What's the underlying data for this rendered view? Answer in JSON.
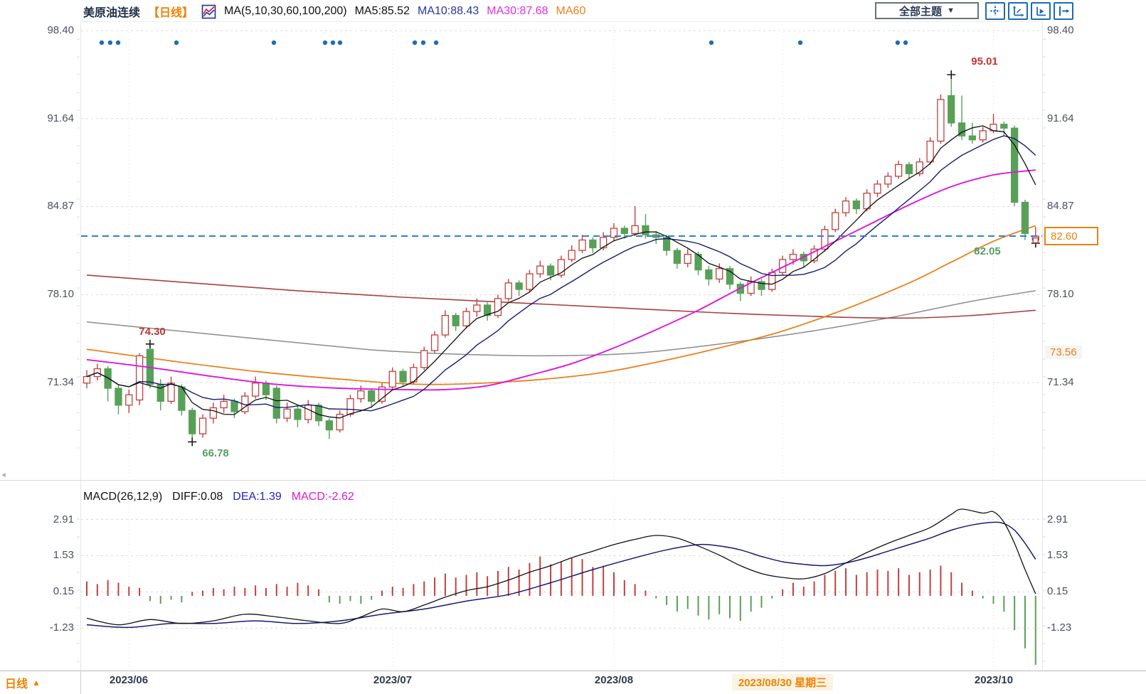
{
  "header": {
    "title": "美原油连续",
    "period_tag": "【日线】",
    "ma_settings": "MA(5,10,30,60,100,200)",
    "ma5": "MA5:85.52",
    "ma10": "MA10:88.43",
    "ma30": "MA30:87.68",
    "ma60": "MA60",
    "theme_dropdown": "全部主题",
    "dropdown_arrow": "▼"
  },
  "icons": {
    "toolbar": [
      "move-cross",
      "axis-fit",
      "axis-play",
      "pan-right"
    ],
    "indicator_icon": "mini-line-chart",
    "period_up_arrow": "▲"
  },
  "colors": {
    "up": "#c0413f",
    "down": "#58a058",
    "ma5": "#111111",
    "ma10": "#191975",
    "ma30": "#dd16dd",
    "ma60": "#e8821e",
    "ma100": "#8c8c8c",
    "ma200": "#a84040",
    "last_price_line": "#2f7ed8",
    "event_dot": "#1f6cb4",
    "accent_orange": "#ef8200",
    "annotation_high": "#c13531",
    "annotation_low": "#55a060"
  },
  "price_axis": {
    "left": [
      "98.40",
      "91.64",
      "84.87",
      "78.10",
      "71.34"
    ],
    "right": [
      "98.40",
      "91.64",
      "84.87",
      "78.10",
      "71.34"
    ],
    "last_price_label": "82.60",
    "extra_right_label": "73.56"
  },
  "macd_axis": {
    "left": [
      "2.91",
      "1.53",
      "0.15",
      "-1.23"
    ],
    "right": [
      "2.91",
      "1.53",
      "0.15",
      "-1.23"
    ]
  },
  "macd_header": {
    "formula": "MACD(26,12,9)",
    "diff": "DIFF:0.08",
    "dea": "DEA:1.39",
    "macd": "MACD:-2.62"
  },
  "annotations": {
    "high1": "74.30",
    "low1": "66.78",
    "high2": "95.01",
    "low2": "82.05"
  },
  "bottom_axis": {
    "period": "日线",
    "arrow": "▲",
    "date1": "2023/06",
    "date2": "2023/07",
    "date3": "2023/08",
    "selected_date": "2023/08/30 星期三",
    "date5": "2023/10"
  },
  "chart_data": {
    "type": "candlestick+macd",
    "symbol": "美原油连续",
    "period": "日线",
    "price_axis_ticks": [
      98.4,
      91.64,
      84.87,
      78.1,
      71.34
    ],
    "macd_axis_ticks": [
      2.91,
      1.53,
      0.15,
      -1.23
    ],
    "last_price": 82.6,
    "extra_axis_value": 73.56,
    "ma_values": {
      "ma5": 85.52,
      "ma10": 88.43,
      "ma30": 87.68
    },
    "candles": [
      [
        71.3,
        72.3,
        70.9,
        71.8
      ],
      [
        71.8,
        72.8,
        71.5,
        72.4
      ],
      [
        72.4,
        72.6,
        69.9,
        70.9
      ],
      [
        70.9,
        71.2,
        68.9,
        69.6
      ],
      [
        69.6,
        70.8,
        69.0,
        70.4
      ],
      [
        70.0,
        73.6,
        69.6,
        73.4
      ],
      [
        73.9,
        74.3,
        70.9,
        71.2
      ],
      [
        71.2,
        71.6,
        69.2,
        69.9
      ],
      [
        69.9,
        71.8,
        69.7,
        71.3
      ],
      [
        71.0,
        71.2,
        68.8,
        69.2
      ],
      [
        69.2,
        69.4,
        66.78,
        67.4
      ],
      [
        67.4,
        68.9,
        67.1,
        68.6
      ],
      [
        68.6,
        69.8,
        68.2,
        69.4
      ],
      [
        69.4,
        70.4,
        69.0,
        69.9
      ],
      [
        69.9,
        70.1,
        68.6,
        69.1
      ],
      [
        69.1,
        70.6,
        68.9,
        70.3
      ],
      [
        70.3,
        71.8,
        70.1,
        71.3
      ],
      [
        71.3,
        71.5,
        70.0,
        70.4
      ],
      [
        70.9,
        71.1,
        68.2,
        68.6
      ],
      [
        68.6,
        69.8,
        68.3,
        69.3
      ],
      [
        69.3,
        69.5,
        67.9,
        68.5
      ],
      [
        68.5,
        70.0,
        68.2,
        69.6
      ],
      [
        69.6,
        69.8,
        68.0,
        68.4
      ],
      [
        68.4,
        68.6,
        67.0,
        67.7
      ],
      [
        67.7,
        69.2,
        67.5,
        68.9
      ],
      [
        68.9,
        70.4,
        68.7,
        70.1
      ],
      [
        70.1,
        71.1,
        69.8,
        70.7
      ],
      [
        70.7,
        70.9,
        69.4,
        69.9
      ],
      [
        69.9,
        71.3,
        69.7,
        71.0
      ],
      [
        71.0,
        72.5,
        70.8,
        72.2
      ],
      [
        72.2,
        72.4,
        71.0,
        71.4
      ],
      [
        71.4,
        72.8,
        71.2,
        72.5
      ],
      [
        72.5,
        74.1,
        72.3,
        73.8
      ],
      [
        73.8,
        75.3,
        73.6,
        75.0
      ],
      [
        75.0,
        76.9,
        74.8,
        76.5
      ],
      [
        76.5,
        76.7,
        75.3,
        75.7
      ],
      [
        75.7,
        77.1,
        75.5,
        76.8
      ],
      [
        76.8,
        77.8,
        76.4,
        77.3
      ],
      [
        77.3,
        77.5,
        76.1,
        76.5
      ],
      [
        76.5,
        78.1,
        76.3,
        77.8
      ],
      [
        77.8,
        79.3,
        77.6,
        79.0
      ],
      [
        79.0,
        79.2,
        78.0,
        78.5
      ],
      [
        78.5,
        80.0,
        78.3,
        79.7
      ],
      [
        79.7,
        80.7,
        79.4,
        80.3
      ],
      [
        80.3,
        80.5,
        79.2,
        79.6
      ],
      [
        79.6,
        81.1,
        79.4,
        80.8
      ],
      [
        80.8,
        81.9,
        80.6,
        81.5
      ],
      [
        81.5,
        82.7,
        81.3,
        82.3
      ],
      [
        82.3,
        82.5,
        81.3,
        81.7
      ],
      [
        81.7,
        82.9,
        81.5,
        82.5
      ],
      [
        82.5,
        83.6,
        82.2,
        83.2
      ],
      [
        83.2,
        83.4,
        82.4,
        82.8
      ],
      [
        82.8,
        84.9,
        82.6,
        83.4
      ],
      [
        83.4,
        84.3,
        82.4,
        82.7
      ],
      [
        82.7,
        83.0,
        82.0,
        82.5
      ],
      [
        82.5,
        82.7,
        81.1,
        81.5
      ],
      [
        81.5,
        81.7,
        80.1,
        80.5
      ],
      [
        80.5,
        81.6,
        80.2,
        81.2
      ],
      [
        81.2,
        81.4,
        79.6,
        80.0
      ],
      [
        80.0,
        80.3,
        78.8,
        79.3
      ],
      [
        79.3,
        80.5,
        79.0,
        80.1
      ],
      [
        80.1,
        80.3,
        78.5,
        78.9
      ],
      [
        78.9,
        79.1,
        77.6,
        78.2
      ],
      [
        78.2,
        79.5,
        78.0,
        79.1
      ],
      [
        79.1,
        79.3,
        78.0,
        78.5
      ],
      [
        78.5,
        80.1,
        78.3,
        79.8
      ],
      [
        79.8,
        81.1,
        79.6,
        80.8
      ],
      [
        80.8,
        81.6,
        80.4,
        81.2
      ],
      [
        81.2,
        81.4,
        80.2,
        80.7
      ],
      [
        80.7,
        81.9,
        80.5,
        81.6
      ],
      [
        81.6,
        83.4,
        81.4,
        83.1
      ],
      [
        83.1,
        84.7,
        82.9,
        84.4
      ],
      [
        84.4,
        85.6,
        84.1,
        85.3
      ],
      [
        85.3,
        85.5,
        84.3,
        84.7
      ],
      [
        84.7,
        86.2,
        84.5,
        85.9
      ],
      [
        85.9,
        86.9,
        85.6,
        86.6
      ],
      [
        86.6,
        87.5,
        86.3,
        87.2
      ],
      [
        87.2,
        88.4,
        87.0,
        88.1
      ],
      [
        88.1,
        88.3,
        87.0,
        87.4
      ],
      [
        87.4,
        88.6,
        87.2,
        88.3
      ],
      [
        88.3,
        90.2,
        88.1,
        89.9
      ],
      [
        89.9,
        93.5,
        89.7,
        93.1
      ],
      [
        93.4,
        95.01,
        91.0,
        91.3
      ],
      [
        91.3,
        93.4,
        90.0,
        90.3
      ],
      [
        90.3,
        91.3,
        89.7,
        90.0
      ],
      [
        90.0,
        91.0,
        89.8,
        90.7
      ],
      [
        90.7,
        92.0,
        90.5,
        91.2
      ],
      [
        91.2,
        91.4,
        90.3,
        90.9
      ],
      [
        90.9,
        91.1,
        84.9,
        85.2
      ],
      [
        85.2,
        85.4,
        82.3,
        82.8
      ],
      [
        82.3,
        83.3,
        82.05,
        82.6
      ]
    ],
    "ma_lines": {
      "ma30": [
        [
          0,
          73.1
        ],
        [
          6,
          72.5
        ],
        [
          12,
          71.8
        ],
        [
          18,
          71.2
        ],
        [
          24,
          70.9
        ],
        [
          30,
          70.8
        ],
        [
          34,
          70.8
        ],
        [
          38,
          71.1
        ],
        [
          42,
          71.9
        ],
        [
          46,
          72.8
        ],
        [
          50,
          74.0
        ],
        [
          54,
          75.4
        ],
        [
          58,
          76.9
        ],
        [
          62,
          78.6
        ],
        [
          66,
          80.2
        ],
        [
          70,
          81.8
        ],
        [
          74,
          83.4
        ],
        [
          78,
          85.0
        ],
        [
          82,
          86.4
        ],
        [
          86,
          87.3
        ],
        [
          90,
          87.68
        ]
      ],
      "ma60": [
        [
          0,
          73.9
        ],
        [
          8,
          73.0
        ],
        [
          16,
          72.2
        ],
        [
          24,
          71.6
        ],
        [
          32,
          71.2
        ],
        [
          40,
          71.4
        ],
        [
          48,
          72.0
        ],
        [
          54,
          72.9
        ],
        [
          60,
          74.0
        ],
        [
          66,
          75.3
        ],
        [
          72,
          77.0
        ],
        [
          78,
          79.0
        ],
        [
          82,
          80.6
        ],
        [
          86,
          82.2
        ],
        [
          90,
          83.4
        ]
      ],
      "ma100": [
        [
          0,
          76.0
        ],
        [
          10,
          75.2
        ],
        [
          20,
          74.4
        ],
        [
          28,
          73.8
        ],
        [
          36,
          73.5
        ],
        [
          44,
          73.4
        ],
        [
          52,
          73.6
        ],
        [
          60,
          74.3
        ],
        [
          68,
          75.2
        ],
        [
          76,
          76.3
        ],
        [
          84,
          77.6
        ],
        [
          90,
          78.4
        ]
      ],
      "ma200": [
        [
          0,
          79.6
        ],
        [
          10,
          79.0
        ],
        [
          20,
          78.4
        ],
        [
          30,
          77.9
        ],
        [
          40,
          77.5
        ],
        [
          50,
          77.1
        ],
        [
          60,
          76.7
        ],
        [
          70,
          76.4
        ],
        [
          78,
          76.3
        ],
        [
          84,
          76.5
        ],
        [
          90,
          76.9
        ]
      ]
    },
    "macd": {
      "params": [
        26,
        12,
        9
      ],
      "diff": 0.08,
      "dea": 1.39,
      "macd": -2.62,
      "diff_points": [
        [
          0,
          -0.85
        ],
        [
          3,
          -1.1
        ],
        [
          6,
          -0.9
        ],
        [
          9,
          -1.05
        ],
        [
          12,
          -0.95
        ],
        [
          15,
          -0.7
        ],
        [
          18,
          -0.8
        ],
        [
          21,
          -0.95
        ],
        [
          24,
          -1.05
        ],
        [
          26,
          -0.8
        ],
        [
          28,
          -0.5
        ],
        [
          30,
          -0.6
        ],
        [
          32,
          -0.35
        ],
        [
          34,
          -0.05
        ],
        [
          36,
          0.2
        ],
        [
          38,
          0.35
        ],
        [
          40,
          0.6
        ],
        [
          42,
          0.9
        ],
        [
          44,
          1.15
        ],
        [
          46,
          1.45
        ],
        [
          48,
          1.7
        ],
        [
          50,
          1.95
        ],
        [
          52,
          2.15
        ],
        [
          54,
          2.3
        ],
        [
          56,
          2.2
        ],
        [
          58,
          1.9
        ],
        [
          60,
          1.55
        ],
        [
          62,
          1.15
        ],
        [
          64,
          0.85
        ],
        [
          66,
          0.7
        ],
        [
          68,
          0.65
        ],
        [
          70,
          0.85
        ],
        [
          72,
          1.25
        ],
        [
          74,
          1.65
        ],
        [
          76,
          2.0
        ],
        [
          78,
          2.3
        ],
        [
          80,
          2.6
        ],
        [
          82,
          3.1
        ],
        [
          83,
          3.3
        ],
        [
          85,
          3.15
        ],
        [
          86,
          3.2
        ],
        [
          87,
          2.8
        ],
        [
          88,
          2.0
        ],
        [
          89,
          1.0
        ],
        [
          90,
          0.08
        ]
      ],
      "dea_points": [
        [
          0,
          -1.1
        ],
        [
          4,
          -1.2
        ],
        [
          8,
          -1.05
        ],
        [
          12,
          -1.05
        ],
        [
          16,
          -0.95
        ],
        [
          20,
          -1.05
        ],
        [
          24,
          -0.95
        ],
        [
          28,
          -0.7
        ],
        [
          32,
          -0.5
        ],
        [
          36,
          -0.2
        ],
        [
          40,
          0.05
        ],
        [
          44,
          0.5
        ],
        [
          48,
          1.0
        ],
        [
          52,
          1.45
        ],
        [
          55,
          1.75
        ],
        [
          58,
          1.95
        ],
        [
          60,
          1.9
        ],
        [
          62,
          1.75
        ],
        [
          64,
          1.5
        ],
        [
          66,
          1.3
        ],
        [
          68,
          1.2
        ],
        [
          70,
          1.15
        ],
        [
          72,
          1.25
        ],
        [
          74,
          1.45
        ],
        [
          76,
          1.7
        ],
        [
          78,
          1.95
        ],
        [
          80,
          2.2
        ],
        [
          82,
          2.5
        ],
        [
          84,
          2.7
        ],
        [
          86,
          2.8
        ],
        [
          87,
          2.75
        ],
        [
          88,
          2.5
        ],
        [
          89,
          2.0
        ],
        [
          90,
          1.39
        ]
      ],
      "histogram": [
        0.55,
        0.45,
        0.6,
        0.5,
        0.35,
        0.3,
        -0.2,
        -0.3,
        -0.15,
        -0.25,
        0.15,
        0.2,
        0.3,
        0.25,
        0.35,
        0.3,
        0.4,
        0.3,
        0.45,
        0.35,
        0.5,
        0.4,
        0.25,
        -0.25,
        -0.3,
        -0.2,
        -0.3,
        -0.15,
        0.2,
        0.35,
        0.3,
        0.45,
        0.55,
        0.7,
        0.85,
        0.7,
        0.8,
        0.9,
        0.75,
        0.95,
        1.1,
        1.0,
        1.25,
        1.5,
        1.2,
        1.3,
        1.45,
        1.4,
        1.1,
        1.15,
        0.9,
        0.6,
        0.45,
        0.2,
        -0.1,
        -0.35,
        -0.6,
        -0.5,
        -0.75,
        -0.9,
        -0.7,
        -0.85,
        -0.95,
        -0.6,
        -0.45,
        -0.1,
        0.25,
        0.5,
        0.35,
        0.55,
        0.8,
        0.95,
        1.05,
        0.8,
        0.9,
        1.0,
        0.95,
        1.05,
        0.8,
        0.9,
        1.0,
        1.15,
        0.9,
        0.5,
        0.2,
        -0.1,
        -0.3,
        -0.6,
        -1.3,
        -2.0,
        -2.62
      ]
    },
    "month_ticks": [
      {
        "index": 4,
        "label": "2023/06",
        "selected": false
      },
      {
        "index": 29,
        "label": "2023/07",
        "selected": false
      },
      {
        "index": 50,
        "label": "2023/08",
        "selected": false
      },
      {
        "index": 66,
        "label": "2023/08/30 星期三",
        "selected": true
      },
      {
        "index": 86,
        "label": "2023/10",
        "selected": false
      }
    ],
    "event_dot_fractions": [
      0.0215,
      0.0303,
      0.0385,
      0.0992,
      0.2006,
      0.2539,
      0.262,
      0.2694,
      0.3472,
      0.356,
      0.3694,
      0.6558,
      0.7483,
      0.8497,
      0.8579
    ],
    "annotations": [
      {
        "index": 6,
        "type": "high",
        "price": 74.3
      },
      {
        "index": 10,
        "type": "low",
        "price": 66.78
      },
      {
        "index": 82,
        "type": "high",
        "price": 95.01
      },
      {
        "index": 90,
        "type": "low",
        "price": 82.05
      }
    ],
    "legend_position": "top-left",
    "grid": true
  }
}
